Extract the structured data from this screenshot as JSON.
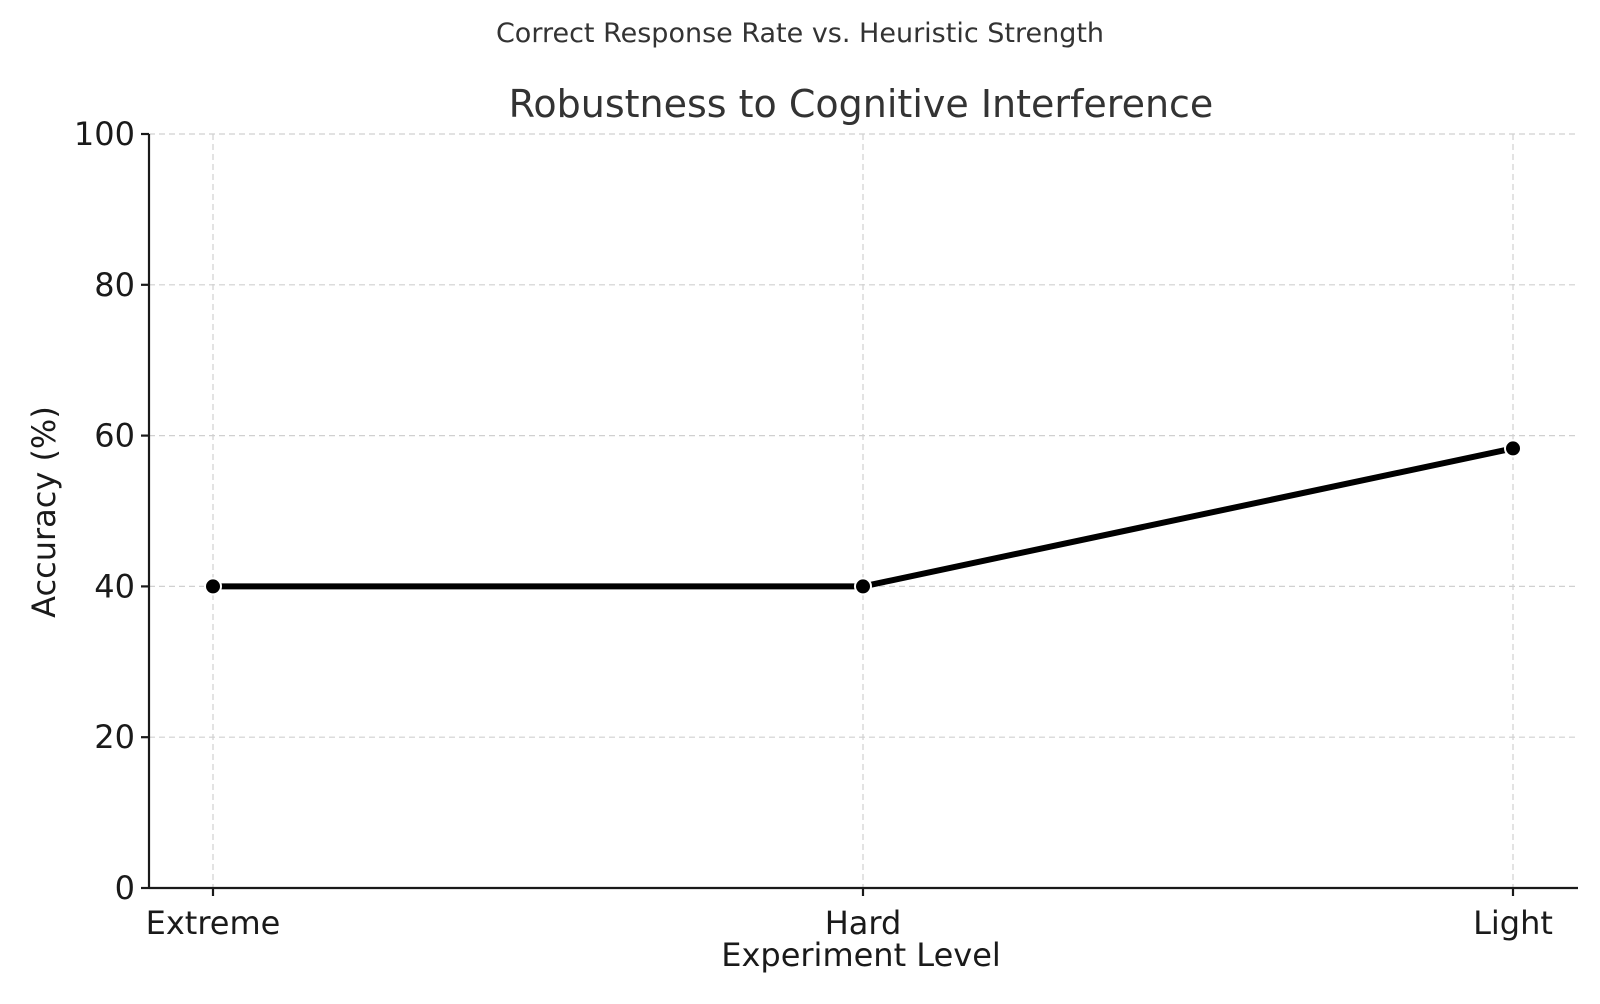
{
  "chart_data": {
    "type": "line",
    "suptitle": "Correct Response Rate vs. Heuristic Strength",
    "title": "Robustness to Cognitive Interference",
    "xlabel": "Experiment Level",
    "ylabel": "Accuracy (%)",
    "categories": [
      "Extreme",
      "Hard",
      "Light"
    ],
    "series": [
      {
        "values": [
          40,
          40,
          58.3
        ]
      }
    ],
    "ylim": [
      0,
      100
    ],
    "yticks": [
      0,
      20,
      40,
      60,
      80,
      100
    ],
    "grid": true,
    "line_color": "#000000",
    "marker_color": "#000000"
  }
}
